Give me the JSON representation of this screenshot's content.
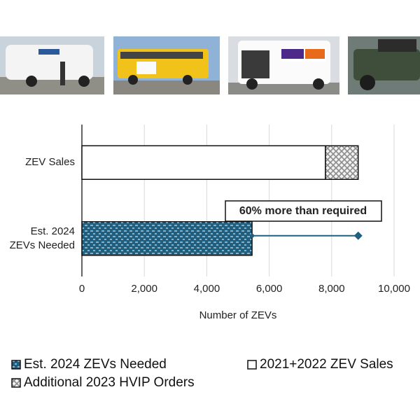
{
  "chart_data": {
    "type": "bar",
    "orientation": "horizontal",
    "stacked": true,
    "categories": [
      "ZEV Sales",
      "Est. 2024 ZEVs Needed"
    ],
    "series": [
      {
        "name": "Est. 2024 ZEVs Needed",
        "color": "#1f5f80",
        "pattern": "dashes",
        "values": [
          null,
          5450
        ]
      },
      {
        "name": "2021+2022 ZEV Sales",
        "color": "#ffffff",
        "pattern": "none",
        "values": [
          7800,
          null
        ]
      },
      {
        "name": "Additional 2023 HVIP Orders",
        "color": "#8c8c8c",
        "pattern": "crosshatch",
        "values": [
          1050,
          null
        ]
      }
    ],
    "xlabel": "Number of ZEVs",
    "xlim": [
      0,
      10000
    ],
    "xticks": [
      0,
      {
        "value": 2000,
        "label": "2,000"
      },
      {
        "value": 4000,
        "label": "4,000"
      },
      {
        "value": 6000,
        "label": "6,000"
      },
      {
        "value": 8000,
        "label": "8,000"
      },
      {
        "value": 10000,
        "label": "10,000"
      }
    ],
    "grid": true,
    "annotation": "60% more than required"
  }
}
